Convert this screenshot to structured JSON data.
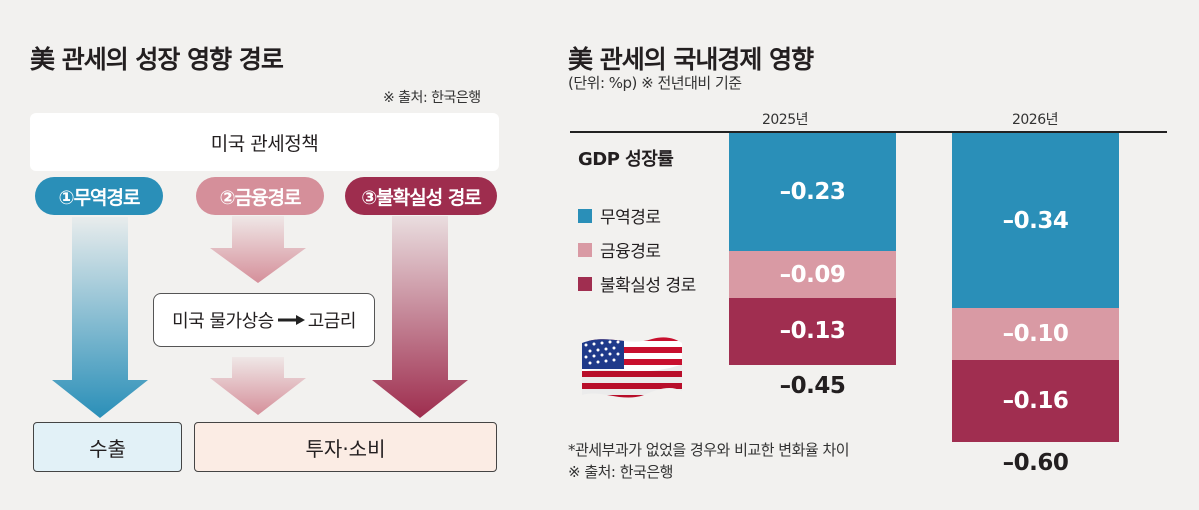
{
  "left": {
    "title": "美 관세의 성장 영향 경로",
    "source": "※ 출처: 한국은행",
    "policy": "미국 관세정책",
    "paths": [
      {
        "label": "①무역경로",
        "color": "#2a8fb8"
      },
      {
        "label": "②금융경로",
        "color": "#d58f9a"
      },
      {
        "label": "③불확실성 경로",
        "color": "#9e2d4e"
      }
    ],
    "mid_box": "미국 물가상승",
    "mid_box_end": "고금리",
    "outputs": {
      "export": "수출",
      "invest": "투자·소비"
    }
  },
  "right": {
    "title": "美 관세의 국내경제 영향",
    "unit": "(단위: %p) ※ 전년대비 기준",
    "row_label": "GDP 성장률",
    "legend": [
      {
        "label": "무역경로",
        "color": "#2a8fb8"
      },
      {
        "label": "금융경로",
        "color": "#d99aa4"
      },
      {
        "label": "불확실성 경로",
        "color": "#a02e50"
      }
    ],
    "note": "*관세부과가 없었을 경우와 비교한 변화율 차이",
    "source": "※ 출처: 한국은행"
  },
  "chart_data": {
    "type": "bar",
    "categories": [
      "2025년",
      "2026년"
    ],
    "series": [
      {
        "name": "무역경로",
        "values": [
          -0.23,
          -0.34
        ],
        "labels": [
          "–0.23",
          "–0.34"
        ]
      },
      {
        "name": "금융경로",
        "values": [
          -0.09,
          -0.1
        ],
        "labels": [
          "–0.09",
          "–0.10"
        ]
      },
      {
        "name": "불확실성 경로",
        "values": [
          -0.13,
          -0.16
        ],
        "labels": [
          "–0.13",
          "–0.16"
        ]
      }
    ],
    "totals": [
      -0.45,
      -0.6
    ],
    "total_labels": [
      "–0.45",
      "–0.60"
    ],
    "stacked": true
  }
}
